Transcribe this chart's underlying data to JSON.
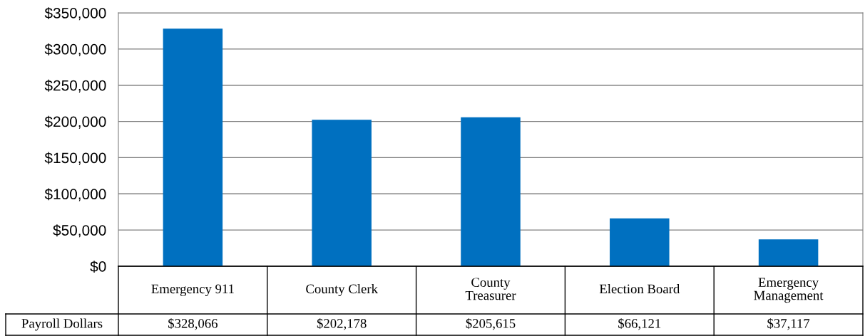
{
  "chart_data": {
    "type": "bar",
    "categories": [
      "Emergency 911",
      "County Clerk",
      "County Treasurer",
      "Election Board",
      "Emergency Management"
    ],
    "series": [
      {
        "name": "Payroll Dollars",
        "color": "#0070c0",
        "values": [
          328066,
          202178,
          205615,
          66121,
          37117
        ],
        "value_labels": [
          "$328,066",
          "$202,178",
          "$205,615",
          "$66,121",
          "$37,117"
        ]
      }
    ],
    "ylim": [
      0,
      350000
    ],
    "yticks": [
      {
        "value": 0,
        "label": "$0"
      },
      {
        "value": 50000,
        "label": "$50,000"
      },
      {
        "value": 100000,
        "label": "$100,000"
      },
      {
        "value": 150000,
        "label": "$150,000"
      },
      {
        "value": 200000,
        "label": "$200,000"
      },
      {
        "value": 250000,
        "label": "$250,000"
      },
      {
        "value": 300000,
        "label": "$300,000"
      },
      {
        "value": 350000,
        "label": "$350,000"
      }
    ],
    "grid": "y",
    "legend": false
  }
}
